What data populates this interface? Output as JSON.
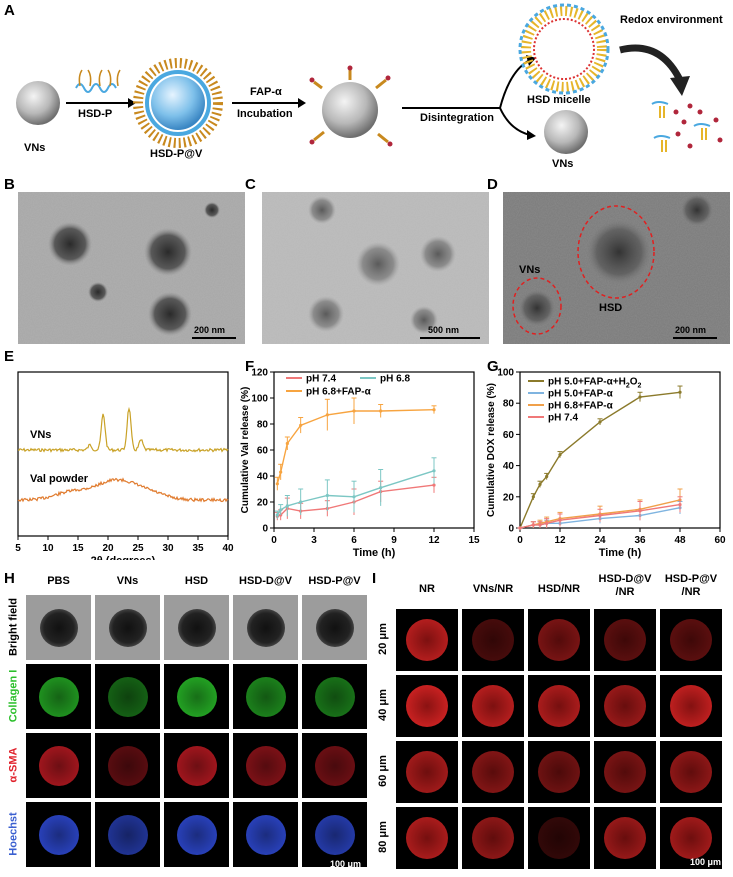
{
  "panel_labels": {
    "A": "A",
    "B": "B",
    "C": "C",
    "D": "D",
    "E": "E",
    "F": "F",
    "G": "G",
    "H": "H",
    "I": "I"
  },
  "schematic": {
    "vns": "VNs",
    "hsd_p": "HSD-P",
    "hsd_p_v": "HSD-P@V",
    "fap": "FAP-α",
    "incubation": "Incubation",
    "disintegration": "Disintegration",
    "hsd_micelle": "HSD micelle",
    "vns2": "VNs",
    "redox": "Redox environment"
  },
  "tem": {
    "b_scale": "200 nm",
    "c_scale": "500 nm",
    "d_scale": "200 nm",
    "d_vns": "VNs",
    "d_hsd": "HSD"
  },
  "chart_data": [
    {
      "type": "line",
      "panel": "E",
      "xlabel": "2θ (degrees)",
      "x_ticks": [
        "5",
        "10",
        "15",
        "20",
        "25",
        "30",
        "35",
        "40"
      ],
      "xlim": [
        5,
        40
      ],
      "series": [
        {
          "name": "VNs",
          "color": "#c9a227"
        },
        {
          "name": "Val powder",
          "color": "#e07b2e"
        }
      ]
    },
    {
      "type": "line",
      "panel": "F",
      "xlabel": "Time (h)",
      "ylabel": "Cumulative Val release (%)",
      "xlim": [
        0,
        15
      ],
      "ylim": [
        0,
        120
      ],
      "x_ticks": [
        "0",
        "3",
        "6",
        "9",
        "12",
        "15"
      ],
      "y_ticks": [
        "0",
        "20",
        "40",
        "60",
        "80",
        "100",
        "120"
      ],
      "series": [
        {
          "name": "pH 7.4",
          "color": "#f07878",
          "x": [
            0.25,
            0.5,
            1,
            2,
            4,
            6,
            8,
            12
          ],
          "y": [
            9,
            10,
            15,
            13,
            15,
            20,
            28,
            33
          ],
          "err": [
            3,
            4,
            8,
            6,
            6,
            10,
            8,
            6
          ]
        },
        {
          "name": "pH 6.8",
          "color": "#7cc7c4",
          "x": [
            0.25,
            0.5,
            1,
            2,
            4,
            6,
            8,
            12
          ],
          "y": [
            10,
            14,
            17,
            20,
            25,
            24,
            31,
            44
          ],
          "err": [
            3,
            4,
            8,
            10,
            12,
            12,
            14,
            10
          ]
        },
        {
          "name": "pH 6.8+FAP-α",
          "color": "#f7a440",
          "x": [
            0.25,
            0.5,
            1,
            2,
            4,
            6,
            8,
            12
          ],
          "y": [
            34,
            43,
            65,
            79,
            87,
            90,
            90,
            91
          ],
          "err": [
            5,
            6,
            5,
            6,
            12,
            10,
            5,
            3
          ]
        }
      ]
    },
    {
      "type": "line",
      "panel": "G",
      "xlabel": "Time (h)",
      "ylabel": "Cumulative DOX release (%)",
      "xlim": [
        0,
        60
      ],
      "ylim": [
        0,
        100
      ],
      "x_ticks": [
        "0",
        "12",
        "24",
        "36",
        "48",
        "60"
      ],
      "y_ticks": [
        "0",
        "20",
        "40",
        "60",
        "80",
        "100"
      ],
      "series": [
        {
          "name": "pH 5.0+FAP-α+H₂O₂",
          "color": "#8b7a2b",
          "x": [
            0,
            4,
            6,
            8,
            12,
            24,
            36,
            48
          ],
          "y": [
            0,
            20,
            28,
            33,
            47,
            68,
            84,
            87
          ],
          "err": [
            0,
            2,
            2,
            2,
            2,
            2,
            3,
            4
          ]
        },
        {
          "name": "pH 5.0+FAP-α",
          "color": "#7fb4e0",
          "x": [
            0,
            4,
            6,
            8,
            12,
            24,
            36,
            48
          ],
          "y": [
            0,
            2,
            2,
            3,
            3,
            6,
            8,
            13
          ],
          "err": [
            0,
            2,
            2,
            2,
            2,
            3,
            3,
            4
          ]
        },
        {
          "name": "pH 6.8+FAP-α",
          "color": "#f0a04a",
          "x": [
            0,
            4,
            6,
            8,
            12,
            24,
            36,
            48
          ],
          "y": [
            0,
            2,
            3,
            4,
            6,
            9,
            12,
            18
          ],
          "err": [
            0,
            2,
            2,
            3,
            4,
            5,
            6,
            7
          ]
        },
        {
          "name": "pH 7.4",
          "color": "#f07878",
          "x": [
            0,
            4,
            6,
            8,
            12,
            24,
            36,
            48
          ],
          "y": [
            0,
            2,
            2,
            3,
            5,
            8,
            11,
            15
          ],
          "err": [
            0,
            2,
            2,
            3,
            4,
            4,
            6,
            5
          ]
        }
      ]
    }
  ],
  "panel_h": {
    "columns": [
      "PBS",
      "VNs",
      "HSD",
      "HSD-D@V",
      "HSD-P@V"
    ],
    "rows": [
      "Bright field",
      "Collagen I",
      "α-SMA",
      "Hoechst"
    ],
    "row_colors": [
      "#000000",
      "#2bbf2b",
      "#e0202a",
      "#3a5fd0"
    ],
    "scale": "100 μm"
  },
  "panel_i": {
    "columns": [
      "NR",
      "VNs/NR",
      "HSD/NR",
      "HSD-D@V /NR",
      "HSD-P@V /NR"
    ],
    "col1": [
      "NR",
      "VNs/NR",
      "HSD/NR",
      "HSD-D@V",
      "HSD-P@V"
    ],
    "col2": [
      "",
      "",
      "",
      "/NR",
      "/NR"
    ],
    "rows": [
      "20 μm",
      "40 μm",
      "60 μm",
      "80 μm"
    ],
    "scale": "100 μm"
  }
}
